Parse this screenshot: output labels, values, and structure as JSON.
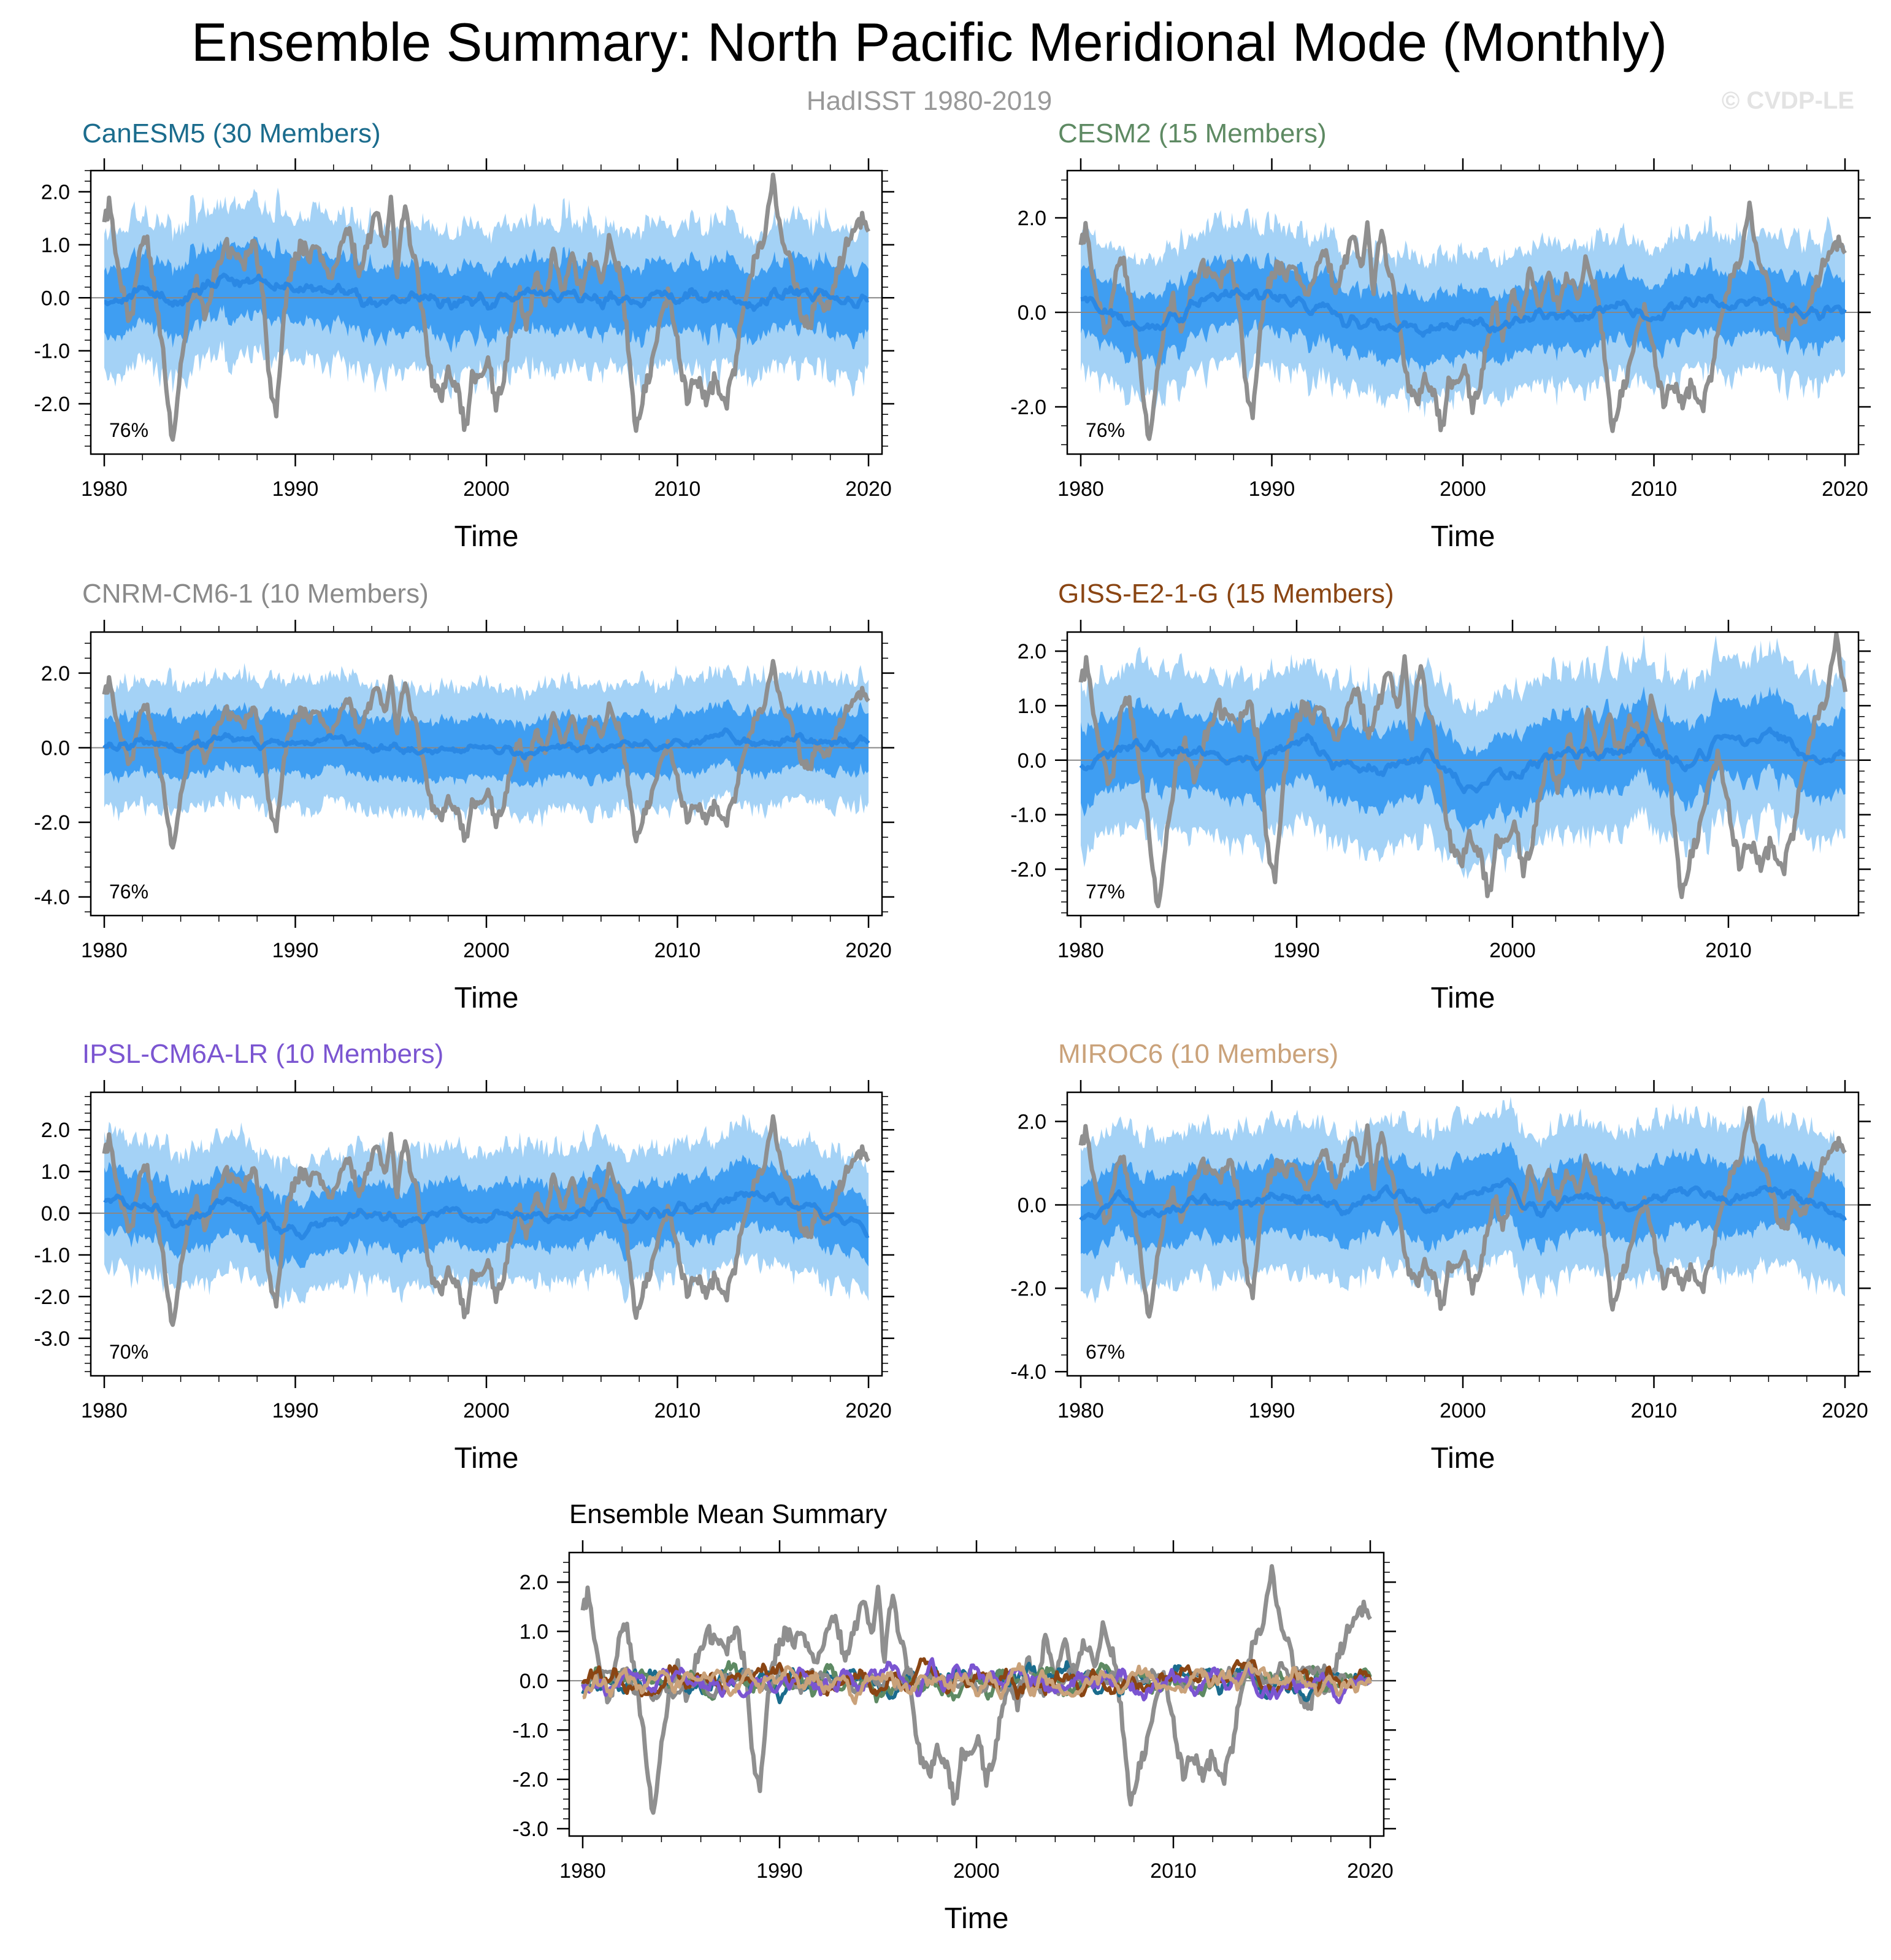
{
  "title": "Ensemble Summary: North Pacific Meridional Mode (Monthly)",
  "subtitle": "HadISST 1980-2019",
  "watermark": "© CVDP-LE",
  "colors": {
    "band_outer": "#a4d2f6",
    "band_inner": "#3f9ef2",
    "ens_mean": "#2a88e4",
    "observations": "#8f8f8f",
    "zero_line": "#888888"
  },
  "chart_data": [
    {
      "id": "canesm5",
      "type": "line",
      "title": "CanESM5 (30 Members)",
      "title_color": "#1b6c8d",
      "xlabel": "Time",
      "xlim": [
        1980,
        2020
      ],
      "xticks": [
        "1980",
        "1990",
        "2000",
        "2010",
        "2020"
      ],
      "ylim": [
        -2.95,
        2.4
      ],
      "yticks": [
        "2.0",
        "1.0",
        "0.0",
        "-1.0",
        "-2.0"
      ],
      "ytick_values": [
        2,
        1,
        0,
        -1,
        -2
      ],
      "annotation": "76%",
      "series": [
        {
          "name": "10-90% member range",
          "values": {
            "center": 0.0,
            "half_width": 1.2
          }
        },
        {
          "name": "25-75% member range",
          "values": {
            "center": 0.0,
            "half_width": 0.55
          }
        },
        {
          "name": "Ensemble mean",
          "values": [
            [
              1980,
              0.0
            ],
            [
              1982,
              0.15
            ],
            [
              1984,
              -0.1
            ],
            [
              1986,
              0.3
            ],
            [
              1988,
              0.35
            ],
            [
              1990,
              0.2
            ],
            [
              1992,
              0.1
            ],
            [
              1994,
              -0.15
            ],
            [
              1996,
              0.05
            ],
            [
              1998,
              -0.15
            ],
            [
              2000,
              -0.1
            ],
            [
              2002,
              0.1
            ],
            [
              2004,
              0.05
            ],
            [
              2006,
              -0.05
            ],
            [
              2008,
              0.0
            ],
            [
              2010,
              0.05
            ],
            [
              2012,
              0.1
            ],
            [
              2014,
              -0.1
            ],
            [
              2016,
              0.15
            ],
            [
              2018,
              0.05
            ],
            [
              2020,
              -0.05
            ]
          ]
        }
      ]
    },
    {
      "id": "cesm2",
      "type": "line",
      "title": "CESM2 (15 Members)",
      "title_color": "#5e8a63",
      "xlabel": "Time",
      "xlim": [
        1980,
        2020
      ],
      "xticks": [
        "1980",
        "1990",
        "2000",
        "2010",
        "2020"
      ],
      "ylim": [
        -3.0,
        3.0
      ],
      "yticks": [
        "2.0",
        "0.0",
        "-2.0"
      ],
      "ytick_values": [
        2,
        0,
        -2
      ],
      "annotation": "76%",
      "series": [
        {
          "name": "10-90% member range",
          "values": {
            "center": 0.0,
            "half_width": 1.3
          }
        },
        {
          "name": "25-75% member range",
          "values": {
            "center": 0.0,
            "half_width": 0.6
          }
        },
        {
          "name": "Ensemble mean",
          "values": [
            [
              1980,
              0.3
            ],
            [
              1982,
              -0.1
            ],
            [
              1984,
              -0.3
            ],
            [
              1986,
              0.1
            ],
            [
              1988,
              0.45
            ],
            [
              1990,
              0.3
            ],
            [
              1992,
              0.2
            ],
            [
              1994,
              -0.2
            ],
            [
              1996,
              -0.3
            ],
            [
              1998,
              -0.4
            ],
            [
              2000,
              -0.2
            ],
            [
              2002,
              -0.3
            ],
            [
              2004,
              0.0
            ],
            [
              2006,
              -0.1
            ],
            [
              2008,
              0.1
            ],
            [
              2010,
              -0.05
            ],
            [
              2012,
              0.2
            ],
            [
              2014,
              0.1
            ],
            [
              2016,
              0.3
            ],
            [
              2018,
              -0.1
            ],
            [
              2020,
              0.1
            ]
          ]
        }
      ]
    },
    {
      "id": "cnrm",
      "type": "line",
      "title": "CNRM-CM6-1 (10 Members)",
      "title_color": "#8a8a8a",
      "xlabel": "Time",
      "xlim": [
        1980,
        2020
      ],
      "xticks": [
        "1980",
        "1990",
        "2000",
        "2010",
        "2020"
      ],
      "ylim": [
        -4.5,
        3.1
      ],
      "yticks": [
        "2.0",
        "0.0",
        "-2.0",
        "-4.0"
      ],
      "ytick_values": [
        2,
        0,
        -2,
        -4
      ],
      "annotation": "76%",
      "series": [
        {
          "name": "10-90% member range",
          "values": {
            "center": 0.0,
            "half_width": 1.5
          }
        },
        {
          "name": "25-75% member range",
          "values": {
            "center": 0.0,
            "half_width": 0.7
          }
        },
        {
          "name": "Ensemble mean",
          "values": [
            [
              1980,
              -0.05
            ],
            [
              1982,
              0.2
            ],
            [
              1984,
              0.0
            ],
            [
              1986,
              0.25
            ],
            [
              1988,
              0.1
            ],
            [
              1990,
              0.05
            ],
            [
              1992,
              0.2
            ],
            [
              1994,
              0.0
            ],
            [
              1996,
              -0.1
            ],
            [
              1998,
              -0.1
            ],
            [
              2000,
              0.0
            ],
            [
              2002,
              -0.15
            ],
            [
              2004,
              0.05
            ],
            [
              2006,
              -0.1
            ],
            [
              2008,
              0.05
            ],
            [
              2010,
              0.0
            ],
            [
              2012,
              0.3
            ],
            [
              2014,
              0.05
            ],
            [
              2016,
              0.25
            ],
            [
              2018,
              0.1
            ],
            [
              2020,
              0.2
            ]
          ]
        }
      ]
    },
    {
      "id": "giss",
      "type": "line",
      "title": "GISS-E2-1-G (15 Members)",
      "title_color": "#8a4513",
      "xlabel": "Time",
      "xlim": [
        1980,
        2015.4
      ],
      "xticks": [
        "1980",
        "1990",
        "2000",
        "2010"
      ],
      "ylim": [
        -2.85,
        2.35
      ],
      "yticks": [
        "2.0",
        "1.0",
        "0.0",
        "-1.0",
        "-2.0"
      ],
      "ytick_values": [
        2,
        1,
        0,
        -1,
        -2
      ],
      "annotation": "77%",
      "series": [
        {
          "name": "10-90% member range",
          "values": {
            "center": 0.0,
            "half_width": 1.3
          }
        },
        {
          "name": "25-75% member range",
          "values": {
            "center": 0.0,
            "half_width": 0.6
          }
        },
        {
          "name": "Ensemble mean",
          "values": [
            [
              1980,
              -0.05
            ],
            [
              1982,
              0.2
            ],
            [
              1984,
              0.3
            ],
            [
              1986,
              0.1
            ],
            [
              1988,
              0.0
            ],
            [
              1990,
              0.4
            ],
            [
              1992,
              -0.1
            ],
            [
              1994,
              -0.2
            ],
            [
              1996,
              0.05
            ],
            [
              1998,
              -0.5
            ],
            [
              2000,
              -0.3
            ],
            [
              2002,
              0.2
            ],
            [
              2004,
              0.1
            ],
            [
              2006,
              0.4
            ],
            [
              2008,
              -0.1
            ],
            [
              2010,
              0.3
            ],
            [
              2012,
              0.5
            ],
            [
              2014,
              0.1
            ],
            [
              2015.4,
              0.2
            ]
          ]
        }
      ]
    },
    {
      "id": "ipsl",
      "type": "line",
      "title": "IPSL-CM6A-LR (10 Members)",
      "title_color": "#7b55d1",
      "xlabel": "Time",
      "xlim": [
        1980,
        2020
      ],
      "xticks": [
        "1980",
        "1990",
        "2000",
        "2010",
        "2020"
      ],
      "ylim": [
        -3.9,
        2.9
      ],
      "yticks": [
        "2.0",
        "1.0",
        "0.0",
        "-1.0",
        "-2.0",
        "-3.0"
      ],
      "ytick_values": [
        2,
        1,
        0,
        -1,
        -2,
        -3
      ],
      "annotation": "70%",
      "series": [
        {
          "name": "10-90% member range",
          "values": {
            "center": 0.0,
            "half_width": 1.4
          }
        },
        {
          "name": "25-75% member range",
          "values": {
            "center": 0.0,
            "half_width": 0.65
          }
        },
        {
          "name": "Ensemble mean",
          "values": [
            [
              1980,
              0.3
            ],
            [
              1982,
              0.2
            ],
            [
              1984,
              -0.3
            ],
            [
              1986,
              0.3
            ],
            [
              1988,
              0.0
            ],
            [
              1990,
              -0.5
            ],
            [
              1992,
              -0.2
            ],
            [
              1994,
              0.0
            ],
            [
              1996,
              -0.2
            ],
            [
              1998,
              0.1
            ],
            [
              2000,
              -0.1
            ],
            [
              2002,
              0.0
            ],
            [
              2004,
              -0.2
            ],
            [
              2006,
              0.2
            ],
            [
              2008,
              -0.1
            ],
            [
              2010,
              0.1
            ],
            [
              2012,
              0.2
            ],
            [
              2014,
              0.5
            ],
            [
              2016,
              0.2
            ],
            [
              2018,
              0.0
            ],
            [
              2020,
              -0.5
            ]
          ]
        }
      ]
    },
    {
      "id": "miroc6",
      "type": "line",
      "title": "MIROC6 (10 Members)",
      "title_color": "#caa27a",
      "xlabel": "Time",
      "xlim": [
        1980,
        2020
      ],
      "xticks": [
        "1980",
        "1990",
        "2000",
        "2010",
        "2020"
      ],
      "ylim": [
        -4.1,
        2.7
      ],
      "yticks": [
        "2.0",
        "0.0",
        "-2.0",
        "-4.0"
      ],
      "ytick_values": [
        2,
        0,
        -2,
        -4
      ],
      "annotation": "67%",
      "series": [
        {
          "name": "10-90% member range",
          "values": {
            "center": 0.0,
            "half_width": 1.6
          }
        },
        {
          "name": "25-75% member range",
          "values": {
            "center": 0.0,
            "half_width": 0.75
          }
        },
        {
          "name": "Ensemble mean",
          "values": [
            [
              1980,
              -0.3
            ],
            [
              1982,
              0.1
            ],
            [
              1984,
              -0.2
            ],
            [
              1986,
              0.1
            ],
            [
              1988,
              0.0
            ],
            [
              1990,
              0.2
            ],
            [
              1992,
              0.1
            ],
            [
              1994,
              -0.1
            ],
            [
              1996,
              0.4
            ],
            [
              1998,
              -0.1
            ],
            [
              2000,
              0.1
            ],
            [
              2002,
              0.6
            ],
            [
              2004,
              -0.2
            ],
            [
              2006,
              0.3
            ],
            [
              2008,
              0.0
            ],
            [
              2010,
              0.1
            ],
            [
              2012,
              0.3
            ],
            [
              2014,
              0.1
            ],
            [
              2016,
              0.5
            ],
            [
              2018,
              0.1
            ],
            [
              2020,
              -0.3
            ]
          ]
        }
      ]
    },
    {
      "id": "mean-summary",
      "type": "line",
      "title": "Ensemble Mean Summary",
      "title_color": "#000000",
      "xlabel": "Time",
      "xlim": [
        1980,
        2020
      ],
      "xticks": [
        "1980",
        "1990",
        "2000",
        "2010",
        "2020"
      ],
      "ylim": [
        -3.15,
        2.6
      ],
      "yticks": [
        "2.0",
        "1.0",
        "0.0",
        "-1.0",
        "-2.0",
        "-3.0"
      ],
      "ytick_values": [
        2,
        1,
        0,
        -1,
        -2,
        -3
      ],
      "annotation": "",
      "series": [
        {
          "name": "CanESM5",
          "color": "#1b6c8d",
          "seed": 11
        },
        {
          "name": "CESM2",
          "color": "#5e8a63",
          "seed": 22
        },
        {
          "name": "CNRM-CM6-1",
          "color": "#8a8a8a",
          "seed": 33
        },
        {
          "name": "GISS-E2-1-G",
          "color": "#8a4513",
          "seed": 44
        },
        {
          "name": "IPSL-CM6A-LR",
          "color": "#7b55d1",
          "seed": 55
        },
        {
          "name": "MIROC6",
          "color": "#caa27a",
          "seed": 66
        }
      ]
    }
  ],
  "observations_hadisst": [
    [
      1980.0,
      1.4
    ],
    [
      1980.3,
      1.8
    ],
    [
      1980.6,
      0.9
    ],
    [
      1981.0,
      0.1
    ],
    [
      1981.4,
      -0.5
    ],
    [
      1981.8,
      0.8
    ],
    [
      1982.2,
      1.1
    ],
    [
      1982.6,
      0.3
    ],
    [
      1983.0,
      -0.8
    ],
    [
      1983.3,
      -1.9
    ],
    [
      1983.6,
      -2.8
    ],
    [
      1984.0,
      -1.2
    ],
    [
      1984.4,
      -0.2
    ],
    [
      1984.8,
      0.3
    ],
    [
      1985.3,
      -0.4
    ],
    [
      1985.8,
      0.5
    ],
    [
      1986.3,
      1.0
    ],
    [
      1986.8,
      0.8
    ],
    [
      1987.3,
      0.6
    ],
    [
      1987.8,
      1.1
    ],
    [
      1988.3,
      0.2
    ],
    [
      1988.7,
      -1.8
    ],
    [
      1989.0,
      -2.1
    ],
    [
      1989.4,
      -0.3
    ],
    [
      1989.8,
      0.6
    ],
    [
      1990.3,
      1.0
    ],
    [
      1990.8,
      0.8
    ],
    [
      1991.3,
      0.9
    ],
    [
      1991.8,
      0.3
    ],
    [
      1992.3,
      0.8
    ],
    [
      1992.8,
      1.3
    ],
    [
      1993.3,
      0.5
    ],
    [
      1993.8,
      1.0
    ],
    [
      1994.3,
      1.7
    ],
    [
      1994.7,
      0.9
    ],
    [
      1995.0,
      1.9
    ],
    [
      1995.3,
      0.3
    ],
    [
      1995.7,
      1.7
    ],
    [
      1996.0,
      1.1
    ],
    [
      1996.4,
      0.4
    ],
    [
      1996.8,
      -0.7
    ],
    [
      1997.2,
      -1.7
    ],
    [
      1997.6,
      -1.9
    ],
    [
      1998.0,
      -1.3
    ],
    [
      1998.5,
      -1.8
    ],
    [
      1998.9,
      -2.5
    ],
    [
      1999.3,
      -1.4
    ],
    [
      1999.7,
      -1.6
    ],
    [
      2000.1,
      -1.1
    ],
    [
      2000.5,
      -2.1
    ],
    [
      2000.9,
      -1.5
    ],
    [
      2001.3,
      -0.5
    ],
    [
      2001.7,
      0.2
    ],
    [
      2002.1,
      -0.6
    ],
    [
      2002.6,
      0.5
    ],
    [
      2003.0,
      -0.2
    ],
    [
      2003.5,
      0.9
    ],
    [
      2004.0,
      0.2
    ],
    [
      2004.5,
      0.7
    ],
    [
      2005.0,
      0.1
    ],
    [
      2005.5,
      0.8
    ],
    [
      2006.0,
      0.3
    ],
    [
      2006.5,
      1.2
    ],
    [
      2007.0,
      0.4
    ],
    [
      2007.4,
      -0.8
    ],
    [
      2007.8,
      -2.4
    ],
    [
      2008.2,
      -1.9
    ],
    [
      2008.6,
      -1.3
    ],
    [
      2009.0,
      -0.7
    ],
    [
      2009.5,
      0.1
    ],
    [
      2010.0,
      -0.9
    ],
    [
      2010.5,
      -1.9
    ],
    [
      2011.0,
      -1.5
    ],
    [
      2011.5,
      -2.0
    ],
    [
      2012.0,
      -1.5
    ],
    [
      2012.5,
      -2.1
    ],
    [
      2013.0,
      -1.3
    ],
    [
      2013.4,
      -0.3
    ],
    [
      2013.8,
      0.4
    ],
    [
      2014.2,
      0.9
    ],
    [
      2014.6,
      1.2
    ],
    [
      2015.0,
      2.3
    ],
    [
      2015.3,
      1.5
    ],
    [
      2015.7,
      0.9
    ],
    [
      2016.1,
      0.4
    ],
    [
      2016.5,
      -0.3
    ],
    [
      2016.9,
      -0.6
    ],
    [
      2017.3,
      0.1
    ],
    [
      2017.7,
      -0.4
    ],
    [
      2018.1,
      0.2
    ],
    [
      2018.5,
      0.6
    ],
    [
      2018.9,
      1.1
    ],
    [
      2019.3,
      1.3
    ],
    [
      2019.7,
      1.5
    ],
    [
      2020.0,
      1.2
    ]
  ]
}
